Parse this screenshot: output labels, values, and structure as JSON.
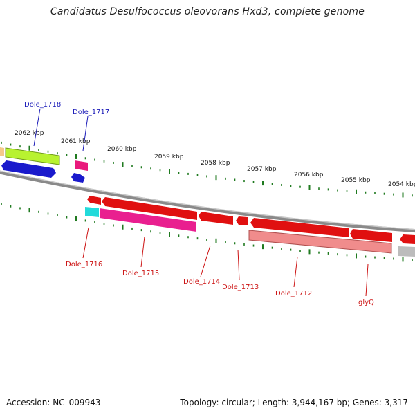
{
  "title": "Candidatus Desulfococcus oleovorans Hxd3, complete genome",
  "footer": {
    "accession": "Accession: NC_009943",
    "summary": "Topology: circular; Length: 3,944,167 bp; Genes: 3,317"
  },
  "colors": {
    "backbone": "#8a8a8a",
    "tick": "#1f7a1f",
    "label_top": "#1a1ab8",
    "label_bottom": "#cc1111"
  },
  "scale": {
    "ticks": [
      {
        "label": "2062 kbp"
      },
      {
        "label": "2061 kbp"
      },
      {
        "label": "2060 kbp"
      },
      {
        "label": "2059 kbp"
      },
      {
        "label": "2058 kbp"
      },
      {
        "label": "2057 kbp"
      },
      {
        "label": "2056 kbp"
      },
      {
        "label": "2055 kbp"
      },
      {
        "label": "2054 kbp"
      }
    ]
  },
  "genes_top": [
    {
      "label": "Dole_1718"
    },
    {
      "label": "Dole_1717"
    }
  ],
  "genes_bottom": [
    {
      "label": "Dole_1716"
    },
    {
      "label": "Dole_1715"
    },
    {
      "label": "Dole_1714"
    },
    {
      "label": "Dole_1713"
    },
    {
      "label": "Dole_1712"
    },
    {
      "label": "glyQ"
    }
  ]
}
